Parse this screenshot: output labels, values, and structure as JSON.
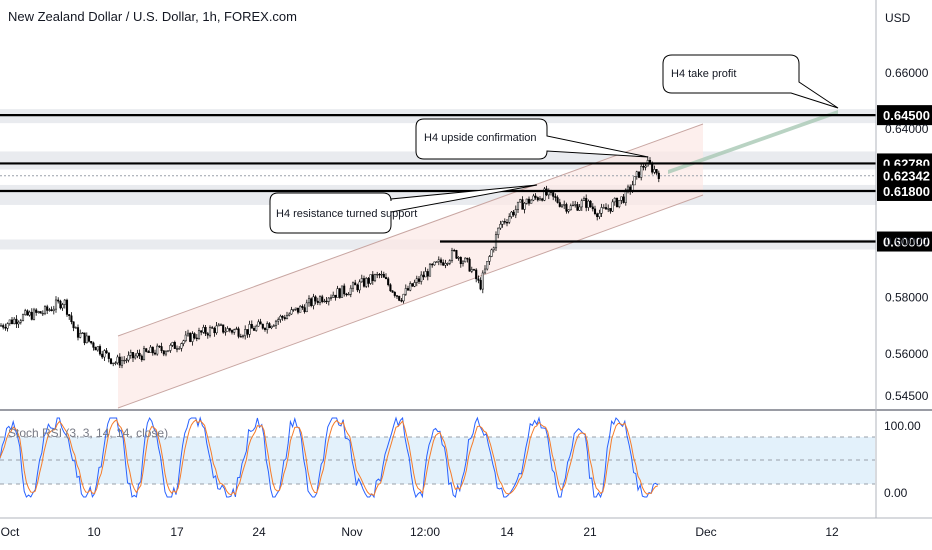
{
  "header": {
    "title": "New Zealand Dollar / U.S. Dollar, 1h, FOREX.com"
  },
  "colors": {
    "candle": "#000000",
    "channel_fill": "#fce8e6",
    "channel_line": "#c8a6a2",
    "level_band": "#e9ebef",
    "stoch_k": "#2962ff",
    "stoch_d": "#f57c2a",
    "stoch_band": "#e3f1fb",
    "projection": "#a8c8b4",
    "price_tag": "#000000"
  },
  "chart_data": [
    {
      "type": "candlestick",
      "title": "New Zealand Dollar / U.S. Dollar, 1h, FOREX.com",
      "currency_label": "USD",
      "ylim": [
        0.5425,
        0.6725
      ],
      "y_ticks": [
        "0.66000",
        "0.64000",
        "0.60000",
        "0.58000",
        "0.56000",
        "0.54500"
      ],
      "x_ticks": [
        "Oct",
        "10",
        "17",
        "24",
        "Nov",
        "12:00",
        "14",
        "21",
        "Dec",
        "12"
      ],
      "horizontal_levels": [
        {
          "label": "0.64500",
          "value": 0.645
        },
        {
          "label": "0.62780",
          "value": 0.6278
        },
        {
          "label": "0.62342",
          "value": 0.62342
        },
        {
          "label": "0.61800",
          "value": 0.618
        },
        {
          "label": "0.60000",
          "value": 0.6
        }
      ],
      "annotations": [
        "H4 take profit",
        "H4 upside confirmation",
        "H4 resistance turned support"
      ],
      "price_path_approx": [
        [
          0,
          0.57
        ],
        [
          20,
          0.573
        ],
        [
          45,
          0.575
        ],
        [
          64,
          0.579
        ],
        [
          75,
          0.568
        ],
        [
          95,
          0.563
        ],
        [
          115,
          0.557
        ],
        [
          135,
          0.559
        ],
        [
          155,
          0.561
        ],
        [
          170,
          0.562
        ],
        [
          190,
          0.566
        ],
        [
          215,
          0.569
        ],
        [
          245,
          0.568
        ],
        [
          270,
          0.571
        ],
        [
          300,
          0.576
        ],
        [
          320,
          0.58
        ],
        [
          350,
          0.583
        ],
        [
          380,
          0.588
        ],
        [
          400,
          0.58
        ],
        [
          430,
          0.59
        ],
        [
          455,
          0.596
        ],
        [
          470,
          0.591
        ],
        [
          480,
          0.584
        ],
        [
          500,
          0.606
        ],
        [
          520,
          0.613
        ],
        [
          545,
          0.617
        ],
        [
          570,
          0.612
        ],
        [
          585,
          0.614
        ],
        [
          600,
          0.61
        ],
        [
          625,
          0.616
        ],
        [
          645,
          0.628
        ],
        [
          660,
          0.624
        ]
      ]
    },
    {
      "type": "line",
      "title": "Stoch RSI (3, 3, 14, 14, close)",
      "ylim": [
        0,
        100
      ],
      "y_ticks": [
        "100.00",
        "0.00"
      ],
      "series": [
        {
          "values": []
        },
        {
          "values": []
        }
      ]
    }
  ]
}
